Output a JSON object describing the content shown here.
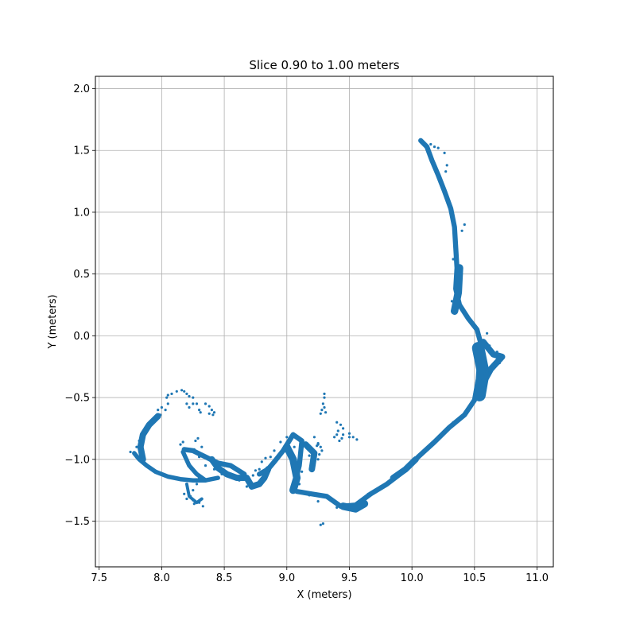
{
  "chart_data": {
    "type": "scatter",
    "title": "Slice 0.90 to 1.00 meters",
    "xlabel": "X (meters)",
    "ylabel": "Y (meters)",
    "xlim": [
      7.47,
      11.13
    ],
    "ylim": [
      -1.87,
      2.1
    ],
    "xticks": [
      7.5,
      8.0,
      8.5,
      9.0,
      9.5,
      10.0,
      10.5,
      11.0
    ],
    "yticks": [
      -1.5,
      -1.0,
      -0.5,
      0.0,
      0.5,
      1.0,
      1.5,
      2.0
    ],
    "xtick_labels": [
      "7.5",
      "8.0",
      "8.5",
      "9.0",
      "9.5",
      "10.0",
      "10.5",
      "11.0"
    ],
    "ytick_labels": [
      "−1.5",
      "−1.0",
      "−0.5",
      "0.0",
      "0.5",
      "1.0",
      "1.5",
      "2.0"
    ],
    "grid": true,
    "series": [
      {
        "color": "#1f77b4",
        "strokes": [
          {
            "w": 0.04,
            "pts": [
              [
                10.07,
                1.58
              ],
              [
                10.12,
                1.53
              ],
              [
                10.16,
                1.42
              ],
              [
                10.21,
                1.3
              ],
              [
                10.26,
                1.17
              ],
              [
                10.31,
                1.03
              ],
              [
                10.34,
                0.88
              ],
              [
                10.35,
                0.72
              ],
              [
                10.36,
                0.55
              ],
              [
                10.35,
                0.38
              ],
              [
                10.38,
                0.25
              ],
              [
                10.45,
                0.14
              ],
              [
                10.52,
                0.05
              ],
              [
                10.55,
                -0.06
              ],
              [
                10.54,
                -0.2
              ],
              [
                10.53,
                -0.35
              ],
              [
                10.5,
                -0.52
              ],
              [
                10.42,
                -0.64
              ],
              [
                10.3,
                -0.74
              ],
              [
                10.18,
                -0.86
              ],
              [
                10.05,
                -0.98
              ],
              [
                9.93,
                -1.1
              ],
              [
                9.8,
                -1.2
              ],
              [
                9.67,
                -1.28
              ],
              [
                9.55,
                -1.37
              ],
              [
                9.43,
                -1.38
              ],
              [
                9.32,
                -1.3
              ],
              [
                9.2,
                -1.28
              ],
              [
                9.08,
                -1.26
              ]
            ]
          },
          {
            "w": 0.1,
            "pts": [
              [
                10.53,
                -0.1
              ],
              [
                10.57,
                -0.3
              ],
              [
                10.54,
                -0.48
              ]
            ]
          },
          {
            "w": 0.05,
            "pts": [
              [
                10.57,
                -0.05
              ],
              [
                10.65,
                -0.15
              ],
              [
                10.72,
                -0.17
              ],
              [
                10.63,
                -0.27
              ],
              [
                10.56,
                -0.4
              ]
            ]
          },
          {
            "w": 0.06,
            "pts": [
              [
                10.38,
                0.55
              ],
              [
                10.37,
                0.35
              ],
              [
                10.34,
                0.2
              ]
            ]
          },
          {
            "w": 0.05,
            "pts": [
              [
                10.03,
                -1.0
              ],
              [
                9.95,
                -1.08
              ],
              [
                9.85,
                -1.15
              ]
            ]
          },
          {
            "w": 0.06,
            "pts": [
              [
                9.45,
                -1.38
              ],
              [
                9.55,
                -1.4
              ],
              [
                9.62,
                -1.36
              ]
            ]
          },
          {
            "w": 0.04,
            "pts": [
              [
                9.05,
                -1.25
              ],
              [
                9.1,
                -1.05
              ],
              [
                9.12,
                -0.85
              ],
              [
                9.05,
                -0.8
              ],
              [
                8.97,
                -0.93
              ],
              [
                8.9,
                -1.02
              ],
              [
                8.85,
                -1.08
              ],
              [
                8.78,
                -1.12
              ]
            ]
          },
          {
            "w": 0.06,
            "pts": [
              [
                9.0,
                -0.9
              ],
              [
                9.05,
                -1.0
              ],
              [
                9.08,
                -1.15
              ],
              [
                9.05,
                -1.25
              ]
            ]
          },
          {
            "w": 0.05,
            "pts": [
              [
                9.15,
                -0.88
              ],
              [
                9.22,
                -0.95
              ],
              [
                9.2,
                -1.08
              ]
            ]
          },
          {
            "w": 0.05,
            "pts": [
              [
                8.85,
                -1.08
              ],
              [
                8.82,
                -1.15
              ],
              [
                8.78,
                -1.2
              ],
              [
                8.72,
                -1.22
              ],
              [
                8.68,
                -1.15
              ]
            ]
          },
          {
            "w": 0.04,
            "pts": [
              [
                8.66,
                -1.12
              ],
              [
                8.55,
                -1.05
              ],
              [
                8.45,
                -1.03
              ],
              [
                8.35,
                -0.98
              ],
              [
                8.25,
                -0.93
              ],
              [
                8.18,
                -0.92
              ]
            ]
          },
          {
            "w": 0.05,
            "pts": [
              [
                8.4,
                -1.0
              ],
              [
                8.45,
                -1.07
              ],
              [
                8.52,
                -1.12
              ],
              [
                8.6,
                -1.15
              ],
              [
                8.66,
                -1.15
              ]
            ]
          },
          {
            "w": 0.035,
            "pts": [
              [
                8.17,
                -0.94
              ],
              [
                8.22,
                -1.05
              ],
              [
                8.28,
                -1.12
              ],
              [
                8.35,
                -1.17
              ]
            ]
          },
          {
            "w": 0.035,
            "pts": [
              [
                8.45,
                -1.15
              ],
              [
                8.35,
                -1.17
              ],
              [
                8.25,
                -1.17
              ],
              [
                8.15,
                -1.16
              ],
              [
                8.05,
                -1.14
              ],
              [
                7.95,
                -1.1
              ],
              [
                7.88,
                -1.05
              ],
              [
                7.82,
                -1.0
              ],
              [
                7.78,
                -0.95
              ]
            ]
          },
          {
            "w": 0.05,
            "pts": [
              [
                7.85,
                -1.0
              ],
              [
                7.83,
                -0.9
              ],
              [
                7.85,
                -0.8
              ],
              [
                7.9,
                -0.72
              ],
              [
                7.97,
                -0.65
              ]
            ]
          },
          {
            "w": 0.025,
            "pts": [
              [
                8.2,
                -1.2
              ],
              [
                8.22,
                -1.3
              ],
              [
                8.28,
                -1.35
              ],
              [
                8.32,
                -1.32
              ]
            ]
          }
        ],
        "points": [
          [
            10.07,
            1.58
          ],
          [
            10.1,
            1.56
          ],
          [
            10.15,
            1.55
          ],
          [
            10.18,
            1.53
          ],
          [
            10.21,
            1.52
          ],
          [
            10.26,
            1.48
          ],
          [
            10.28,
            1.38
          ],
          [
            10.27,
            1.33
          ],
          [
            10.42,
            0.9
          ],
          [
            10.4,
            0.85
          ],
          [
            10.33,
            0.62
          ],
          [
            10.32,
            0.28
          ],
          [
            10.47,
            0.12
          ],
          [
            10.52,
            0.06
          ],
          [
            10.6,
            0.02
          ],
          [
            10.62,
            -0.08
          ],
          [
            10.68,
            -0.13
          ],
          [
            10.72,
            -0.17
          ],
          [
            10.7,
            -0.22
          ],
          [
            10.62,
            -0.3
          ],
          [
            10.58,
            -0.42
          ],
          [
            10.45,
            -0.6
          ],
          [
            10.33,
            -0.7
          ],
          [
            10.18,
            -0.85
          ],
          [
            10.12,
            -0.92
          ],
          [
            10.08,
            -0.96
          ],
          [
            9.98,
            -1.06
          ],
          [
            9.88,
            -1.14
          ],
          [
            9.75,
            -1.22
          ],
          [
            9.65,
            -1.28
          ],
          [
            9.5,
            -1.39
          ],
          [
            9.4,
            -1.39
          ],
          [
            9.35,
            -1.33
          ],
          [
            9.3,
            -1.3
          ],
          [
            9.27,
            -1.53
          ],
          [
            9.29,
            -1.52
          ],
          [
            9.25,
            -1.34
          ],
          [
            9.18,
            -1.29
          ],
          [
            9.12,
            -1.26
          ],
          [
            9.1,
            -1.2
          ],
          [
            9.12,
            -1.1
          ],
          [
            9.2,
            -0.95
          ],
          [
            9.25,
            -0.88
          ],
          [
            9.22,
            -0.82
          ],
          [
            9.3,
            -0.47
          ],
          [
            9.3,
            -0.5
          ],
          [
            9.29,
            -0.55
          ],
          [
            9.28,
            -0.6
          ],
          [
            9.3,
            -0.58
          ],
          [
            9.31,
            -0.62
          ],
          [
            9.27,
            -0.63
          ],
          [
            9.4,
            -0.7
          ],
          [
            9.43,
            -0.72
          ],
          [
            9.45,
            -0.75
          ],
          [
            9.41,
            -0.77
          ],
          [
            9.4,
            -0.8
          ],
          [
            9.45,
            -0.8
          ],
          [
            9.5,
            -0.82
          ],
          [
            9.53,
            -0.82
          ],
          [
            9.56,
            -0.84
          ],
          [
            9.5,
            -0.79
          ],
          [
            9.44,
            -0.83
          ],
          [
            9.42,
            -0.85
          ],
          [
            9.38,
            -0.82
          ],
          [
            9.25,
            -0.87
          ],
          [
            9.24,
            -0.89
          ],
          [
            9.27,
            -0.9
          ],
          [
            9.28,
            -0.93
          ],
          [
            9.26,
            -0.96
          ],
          [
            9.25,
            -1.0
          ],
          [
            9.22,
            -1.04
          ],
          [
            9.18,
            -0.97
          ],
          [
            9.15,
            -0.88
          ],
          [
            9.06,
            -0.9
          ],
          [
            9.0,
            -0.82
          ],
          [
            8.95,
            -0.86
          ],
          [
            8.9,
            -0.93
          ],
          [
            8.87,
            -0.98
          ],
          [
            8.83,
            -0.99
          ],
          [
            8.8,
            -1.02
          ],
          [
            8.78,
            -1.08
          ],
          [
            8.75,
            -1.09
          ],
          [
            8.73,
            -1.13
          ],
          [
            8.7,
            -1.18
          ],
          [
            8.68,
            -1.22
          ],
          [
            8.62,
            -1.17
          ],
          [
            8.55,
            -1.13
          ],
          [
            8.48,
            -1.12
          ],
          [
            8.42,
            -1.08
          ],
          [
            8.35,
            -1.05
          ],
          [
            8.3,
            -0.98
          ],
          [
            8.28,
            -0.95
          ],
          [
            8.27,
            -0.85
          ],
          [
            8.29,
            -0.83
          ],
          [
            8.32,
            -0.9
          ],
          [
            8.26,
            -0.92
          ],
          [
            8.2,
            -0.92
          ],
          [
            8.15,
            -0.88
          ],
          [
            8.17,
            -0.86
          ],
          [
            8.3,
            -1.15
          ],
          [
            8.28,
            -1.2
          ],
          [
            8.25,
            -1.25
          ],
          [
            8.23,
            -1.3
          ],
          [
            8.25,
            -1.33
          ],
          [
            8.3,
            -1.35
          ],
          [
            8.33,
            -1.38
          ],
          [
            8.26,
            -1.36
          ],
          [
            8.2,
            -1.32
          ],
          [
            8.18,
            -1.28
          ],
          [
            7.78,
            -0.95
          ],
          [
            7.75,
            -0.94
          ],
          [
            7.8,
            -0.9
          ],
          [
            7.82,
            -0.85
          ],
          [
            7.84,
            -0.8
          ],
          [
            7.86,
            -0.76
          ],
          [
            7.9,
            -0.72
          ],
          [
            7.95,
            -0.68
          ],
          [
            7.99,
            -0.64
          ],
          [
            8.03,
            -0.6
          ],
          [
            8.05,
            -0.55
          ],
          [
            8.04,
            -0.5
          ],
          [
            8.05,
            -0.48
          ],
          [
            8.08,
            -0.47
          ],
          [
            8.12,
            -0.45
          ],
          [
            8.16,
            -0.44
          ],
          [
            8.18,
            -0.45
          ],
          [
            8.2,
            -0.47
          ],
          [
            8.22,
            -0.49
          ],
          [
            8.25,
            -0.5
          ],
          [
            8.25,
            -0.55
          ],
          [
            8.28,
            -0.55
          ],
          [
            8.3,
            -0.6
          ],
          [
            8.31,
            -0.62
          ],
          [
            8.2,
            -0.55
          ],
          [
            8.22,
            -0.58
          ],
          [
            8.35,
            -0.55
          ],
          [
            8.38,
            -0.57
          ],
          [
            8.4,
            -0.6
          ],
          [
            8.42,
            -0.62
          ],
          [
            8.41,
            -0.64
          ],
          [
            8.38,
            -0.63
          ],
          [
            8.0,
            -0.58
          ],
          [
            7.97,
            -0.6
          ]
        ]
      }
    ]
  }
}
